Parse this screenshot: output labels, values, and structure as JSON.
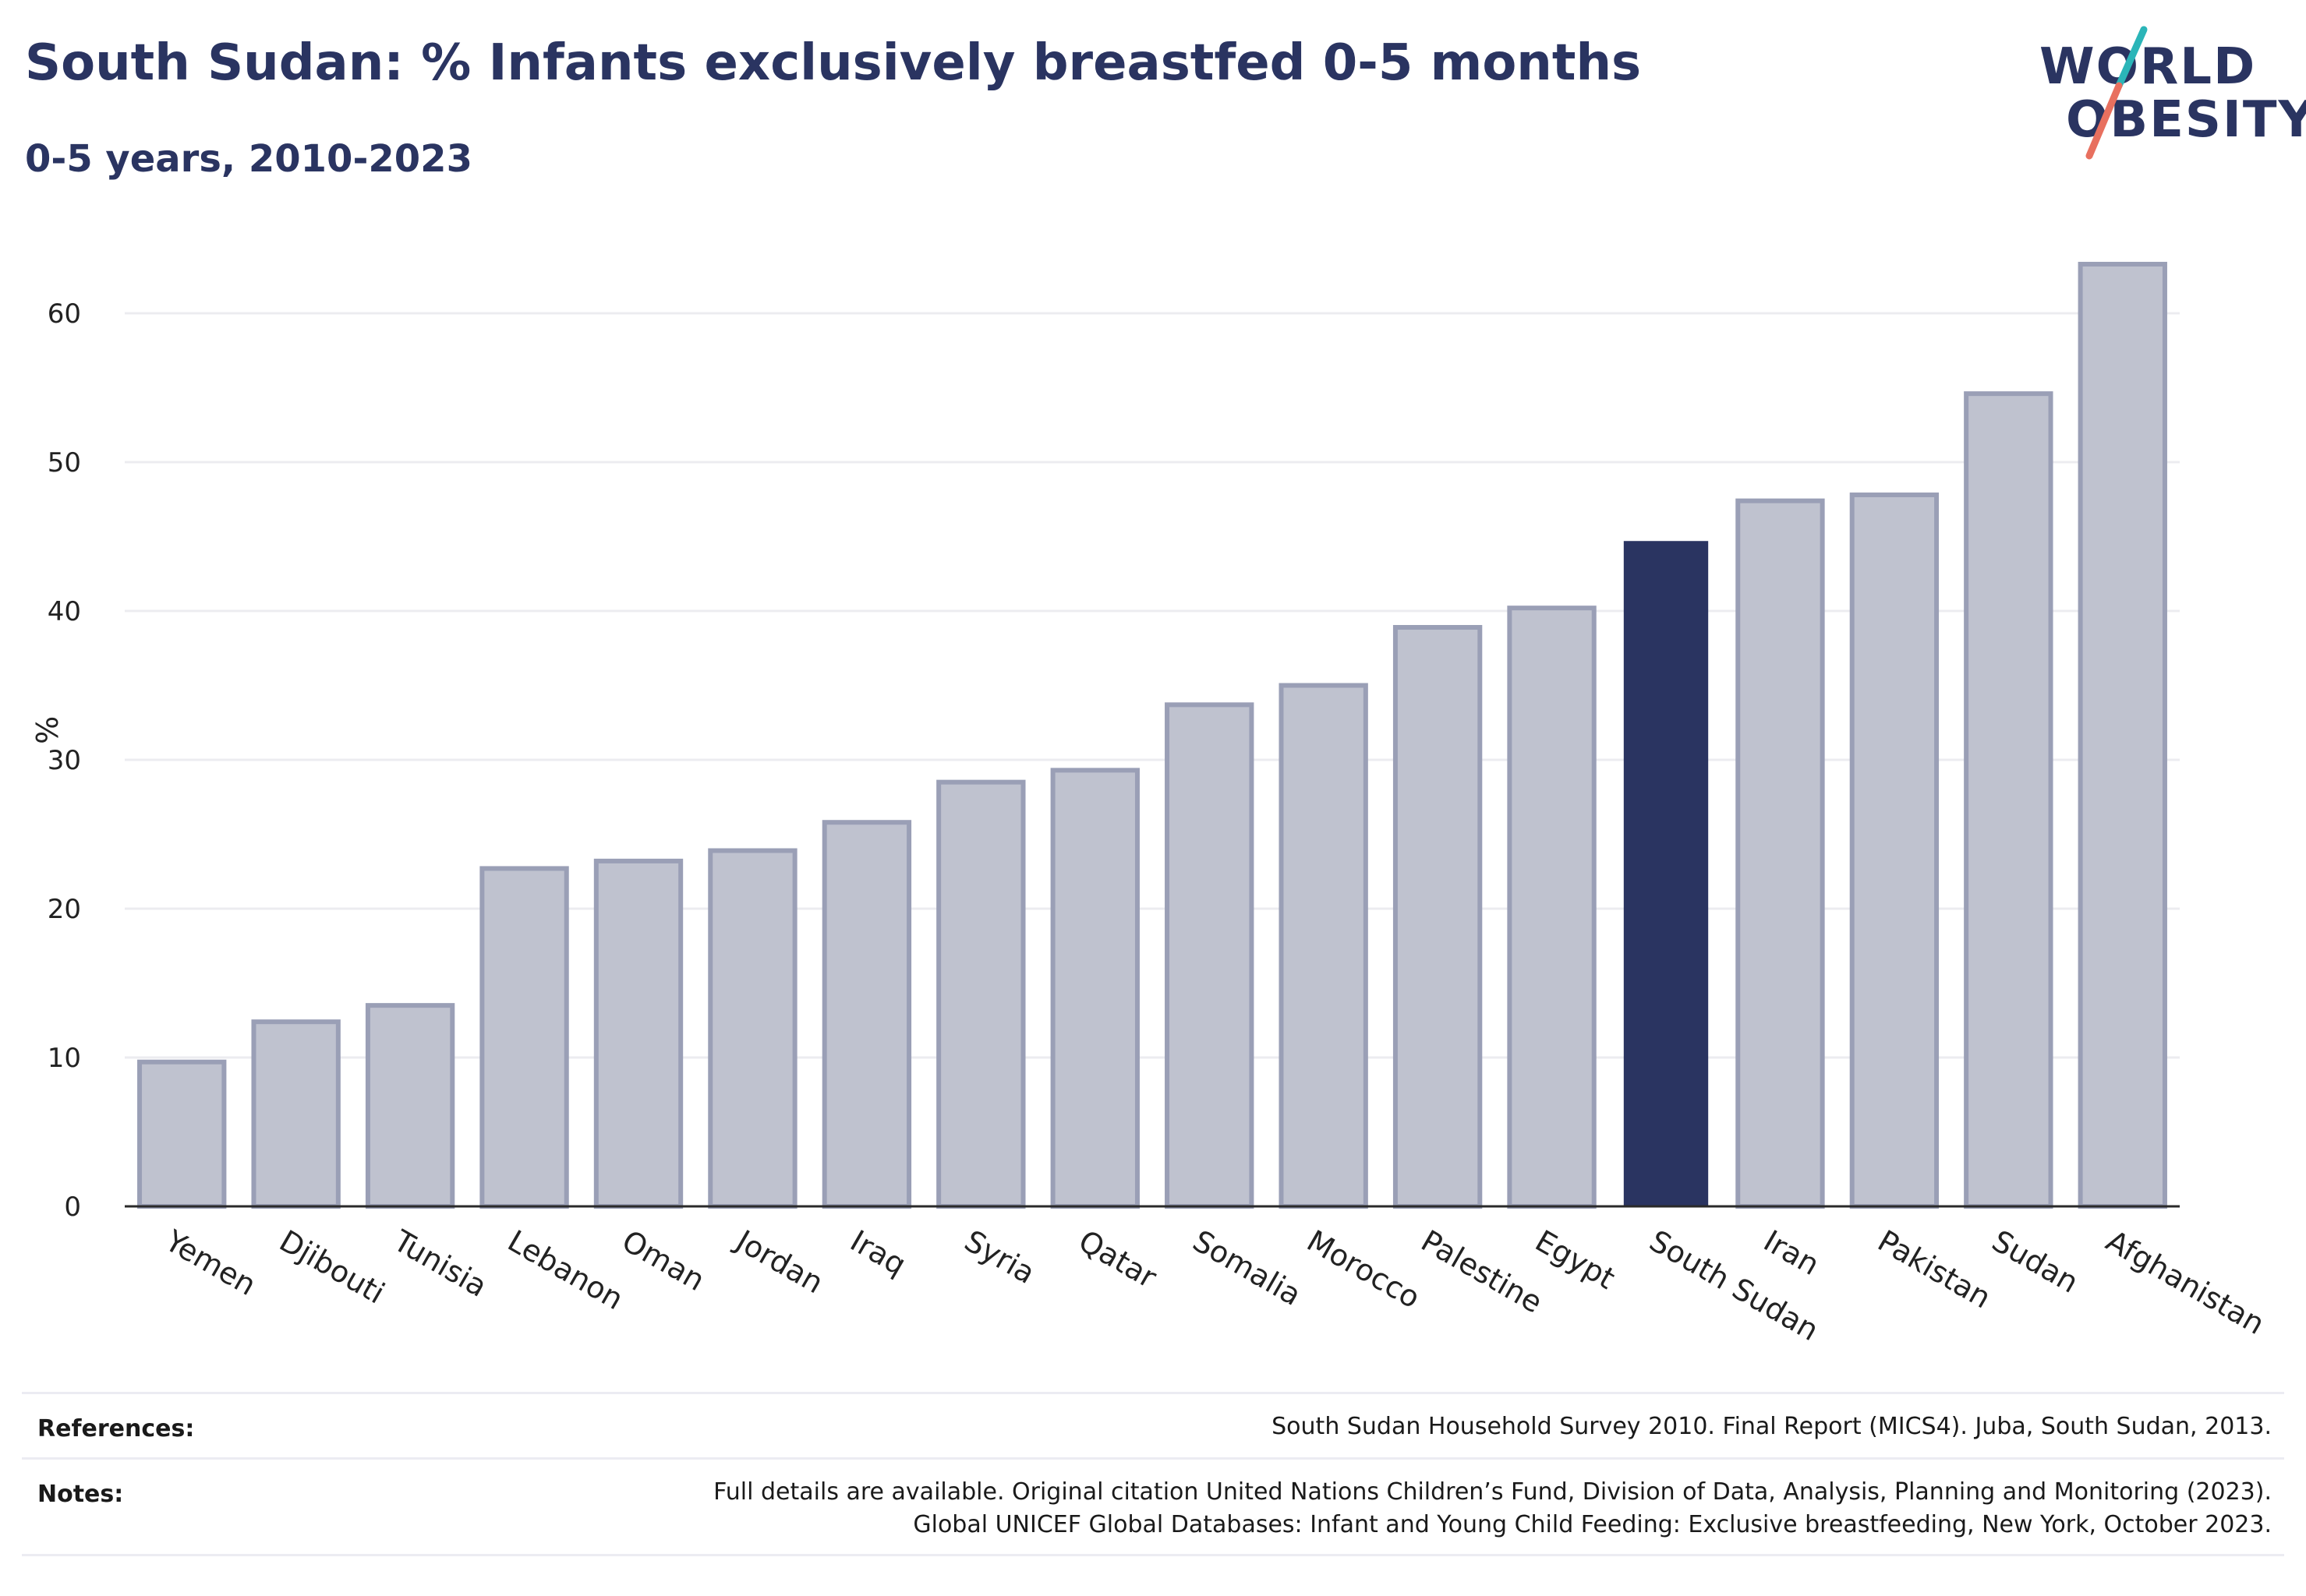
{
  "header": {
    "title": "South Sudan: % Infants exclusively breastfed 0-5 months",
    "subtitle": "0-5 years, 2010-2023"
  },
  "logo": {
    "line1": "WORLD",
    "line2": "OBESITY",
    "colors": {
      "text": "#2a3461",
      "slash_top": "#2bb5b8",
      "slash_bottom": "#e8705f"
    }
  },
  "chart_data": {
    "type": "bar",
    "title": "South Sudan: % Infants exclusively breastfed 0-5 months",
    "subtitle": "0-5 years, 2010-2023",
    "xlabel": "",
    "ylabel": "%",
    "ylim": [
      0,
      65
    ],
    "yticks": [
      0,
      10,
      20,
      30,
      40,
      50,
      60
    ],
    "grid": true,
    "highlight": "South Sudan",
    "colors": {
      "bar": "#bfc2cf",
      "bar_edge": "#9a9fb6",
      "highlight": "#2a3461",
      "grid": "#ececf0",
      "axis": "#2a2a2a"
    },
    "categories": [
      "Yemen",
      "Djibouti",
      "Tunisia",
      "Lebanon",
      "Oman",
      "Jordan",
      "Iraq",
      "Syria",
      "Qatar",
      "Somalia",
      "Morocco",
      "Palestine",
      "Egypt",
      "South Sudan",
      "Iran",
      "Pakistan",
      "Sudan",
      "Afghanistan"
    ],
    "values": [
      9.7,
      12.4,
      13.5,
      22.7,
      23.2,
      23.9,
      25.8,
      28.5,
      29.3,
      33.7,
      35.0,
      38.9,
      40.2,
      44.7,
      47.4,
      47.8,
      54.6,
      63.3
    ]
  },
  "footer": {
    "references_label": "References:",
    "references_text": "South Sudan Household Survey 2010. Final Report (MICS4). Juba, South Sudan, 2013.",
    "notes_label": "Notes:",
    "notes_line1": "Full details are available. Original citation United Nations Children’s Fund, Division of Data, Analysis, Planning and Monitoring (2023).",
    "notes_line2": "Global UNICEF Global Databases: Infant and Young Child Feeding: Exclusive breastfeeding, New York, October 2023."
  }
}
